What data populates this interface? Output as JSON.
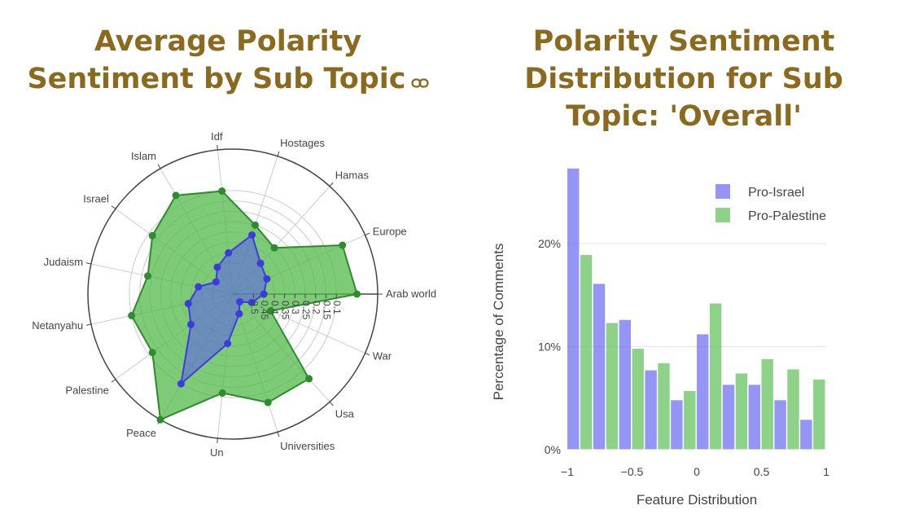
{
  "left_title": "Average Polarity Sentiment by Sub Topic",
  "right_title": "Polarity Sentiment Distribution for Sub Topic: 'Overall'",
  "icons": {
    "title_link": "link-icon"
  },
  "colors": {
    "title": "#8a6a1f",
    "pro_israel": "#5b5cf0",
    "pro_palestine": "#52b84a",
    "grid": "#cccccc",
    "axis_line": "#444444"
  },
  "chart_data": [
    {
      "type": "radar",
      "title": "Average Polarity Sentiment by Sub Topic",
      "categories": [
        "Arab world",
        "Europe",
        "Hamas",
        "Hostages",
        "Idf",
        "Islam",
        "Israel",
        "Judaism",
        "Netanyahu",
        "Palestine",
        "Peace",
        "Un",
        "Universities",
        "Usa",
        "War"
      ],
      "radial_axis": {
        "range": [
          -0.6,
          0.1
        ],
        "ticks": [
          0.1,
          0.15,
          0.2,
          0.25,
          0.3,
          0.35,
          0.4,
          0.45,
          0.5
        ],
        "tick_labels": [
          "0.1",
          "0.15",
          "0.2",
          "0.25",
          "0.3",
          "0.35",
          "0.4",
          "0.45",
          "0.5"
        ]
      },
      "series": [
        {
          "name": "Pro-Israel",
          "values": [
            -0.45,
            -0.42,
            -0.4,
            -0.3,
            -0.4,
            -0.45,
            -0.5,
            -0.43,
            -0.38,
            -0.35,
            -0.1,
            -0.36,
            -0.5,
            -0.55,
            -0.5
          ]
        },
        {
          "name": "Pro-Palestine",
          "values": [
            0.0,
            -0.02,
            -0.3,
            -0.25,
            -0.1,
            -0.05,
            -0.12,
            -0.18,
            -0.1,
            -0.12,
            0.1,
            -0.12,
            -0.05,
            -0.05,
            -0.4
          ]
        }
      ]
    },
    {
      "type": "bar",
      "title": "Polarity Sentiment Distribution for Sub Topic: 'Overall'",
      "xlabel": "Feature Distribution",
      "ylabel": "Percentage of Comments",
      "xlim": [
        -1,
        1
      ],
      "ylim": [
        0,
        28
      ],
      "x_ticks": [
        -1,
        -0.5,
        0,
        0.5,
        1
      ],
      "x_tick_labels": [
        "−1",
        "−0.5",
        "0",
        "0.5",
        "1"
      ],
      "y_ticks": [
        0,
        10,
        20
      ],
      "y_tick_labels": [
        "0%",
        "10%",
        "20%"
      ],
      "grid": true,
      "legend": "top-right",
      "bin_start": [
        -1.0,
        -0.8,
        -0.6,
        -0.4,
        -0.2,
        0.0,
        0.2,
        0.4,
        0.6,
        0.8
      ],
      "series": [
        {
          "name": "Pro-Israel",
          "values": [
            27.3,
            16.1,
            12.6,
            7.7,
            4.8,
            11.2,
            6.3,
            6.3,
            4.8,
            2.9
          ]
        },
        {
          "name": "Pro-Palestine",
          "values": [
            18.9,
            12.3,
            9.8,
            8.4,
            5.7,
            14.2,
            7.4,
            8.8,
            7.8,
            6.8
          ]
        }
      ]
    }
  ]
}
